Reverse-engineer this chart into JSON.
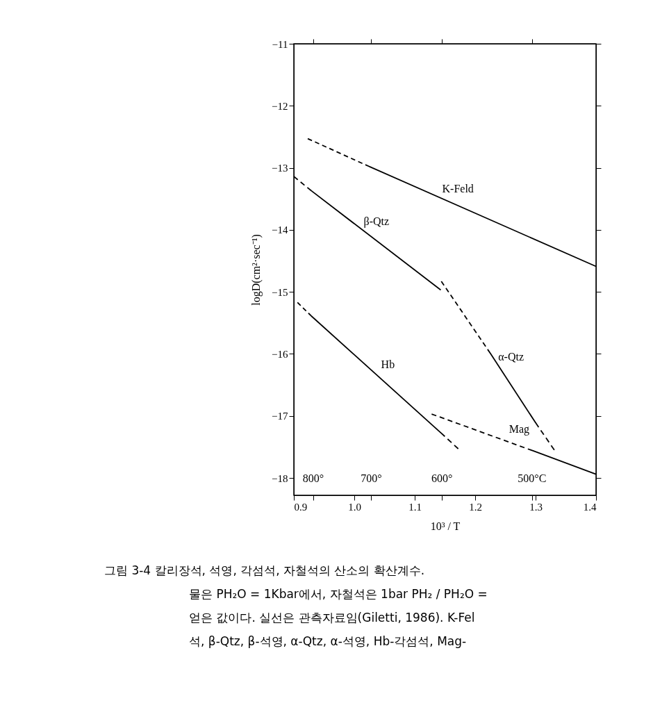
{
  "chart_data": {
    "type": "line",
    "xlabel": "10³ / T",
    "ylabel": "logD(cm²·sec⁻¹)",
    "xlim": [
      0.9,
      1.4
    ],
    "ylim": [
      -18.28,
      -11
    ],
    "xticks": [
      {
        "value": 0.9,
        "label": "0.9"
      },
      {
        "value": 1.0,
        "label": "1.0"
      },
      {
        "value": 1.1,
        "label": "1.1"
      },
      {
        "value": 1.2,
        "label": "1.2"
      },
      {
        "value": 1.3,
        "label": "1.3"
      },
      {
        "value": 1.4,
        "label": "1.4"
      },
      {
        "value": 0.932,
        "label": null
      },
      {
        "value": 1.028,
        "label": null
      },
      {
        "value": 1.145,
        "label": null
      },
      {
        "value": 1.294,
        "label": null
      }
    ],
    "yticks": [
      -11,
      -12,
      -13,
      -14,
      -15,
      -16,
      -17,
      -18
    ],
    "grid": false,
    "marker": "none",
    "series": [
      {
        "name": "K-Feld",
        "color": "#000000",
        "line_style": [
          "dashed",
          "solid"
        ],
        "x": [
          0.923,
          1.025,
          1.4
        ],
        "values": [
          -12.53,
          -12.98,
          -14.59
        ]
      },
      {
        "name": "β-Qtz",
        "color": "#000000",
        "line_style": [
          "dashed",
          "solid"
        ],
        "x": [
          0.9,
          0.929,
          1.143
        ],
        "values": [
          -13.14,
          -13.37,
          -14.97
        ]
      },
      {
        "name": "α-Qtz",
        "color": "#000000",
        "line_style": [
          "dashed",
          "solid",
          "dashed"
        ],
        "x": [
          1.144,
          1.225,
          1.3,
          1.331
        ],
        "values": [
          -14.83,
          -15.99,
          -17.11,
          -17.55
        ]
      },
      {
        "name": "Hb",
        "color": "#000000",
        "line_style": [
          "dashed",
          "solid",
          "dashed"
        ],
        "x": [
          0.906,
          0.929,
          1.143,
          1.172
        ],
        "values": [
          -15.17,
          -15.39,
          -17.27,
          -17.53
        ]
      },
      {
        "name": "Mag",
        "color": "#000000",
        "line_style": [
          "dashed",
          "solid"
        ],
        "x": [
          1.128,
          1.295,
          1.4
        ],
        "values": [
          -16.97,
          -17.56,
          -17.94
        ]
      }
    ],
    "annotations": [
      "800°",
      "700°",
      "600°",
      "500°C",
      "그림 3-4  칼리장석, 석영, 각섬석, 자철석의 산소의 확산계수.",
      "물은 PH₂O = 1Kbar에서, 자철석은 1bar PH₂ / PH₂O =",
      "얻은 값이다. 실선은 관측자료임(Giletti, 1986). K-Fel",
      "석, β-Qtz, β-석영, α-Qtz, α-석영, Hb-각섬석, Mag-"
    ]
  }
}
